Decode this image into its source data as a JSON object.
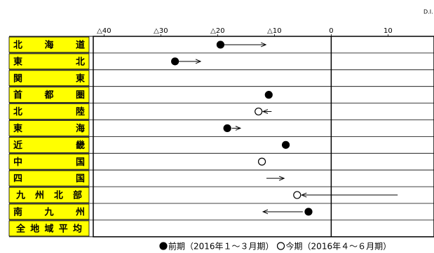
{
  "chart_data": {
    "type": "dot-arrow",
    "x_label": "D.I.",
    "categories": [
      "北海道",
      "東北",
      "関東",
      "首都圏",
      "北陸",
      "東海",
      "近畿",
      "中国",
      "四国",
      "九州北部",
      "南九州",
      "全地域平均"
    ],
    "series": [
      {
        "name": "前期（2016年１～３月期）",
        "color": "#000000",
        "filled": true,
        "values": [
          -19.5,
          -27.5,
          null,
          -11,
          null,
          -18.3,
          -8,
          null,
          null,
          null,
          -4,
          null
        ]
      },
      {
        "name": "今期（2016年４～６月期）",
        "color": "#000000",
        "filled": false,
        "values": [
          null,
          null,
          null,
          null,
          -12.8,
          null,
          null,
          -12.2,
          null,
          -6,
          null,
          null
        ]
      }
    ],
    "arrows": [
      {
        "from": -19,
        "to": -11.5
      },
      {
        "from": -27,
        "to": -23
      },
      null,
      null,
      {
        "from": -10.5,
        "to": -12
      },
      {
        "from": -17.5,
        "to": -16
      },
      null,
      null,
      {
        "from": -11.4,
        "to": -8.3
      },
      {
        "from": 11.7,
        "to": -5.2
      },
      {
        "from": -5,
        "to": -12
      },
      null
    ],
    "xlim": [
      -41.9,
      18.1
    ],
    "xticks": [
      {
        "value": -40,
        "label": "△40"
      },
      {
        "value": -30,
        "label": "△30"
      },
      {
        "value": -20,
        "label": "△20"
      },
      {
        "value": -10,
        "label": "△10"
      },
      0,
      10,
      20
    ]
  }
}
